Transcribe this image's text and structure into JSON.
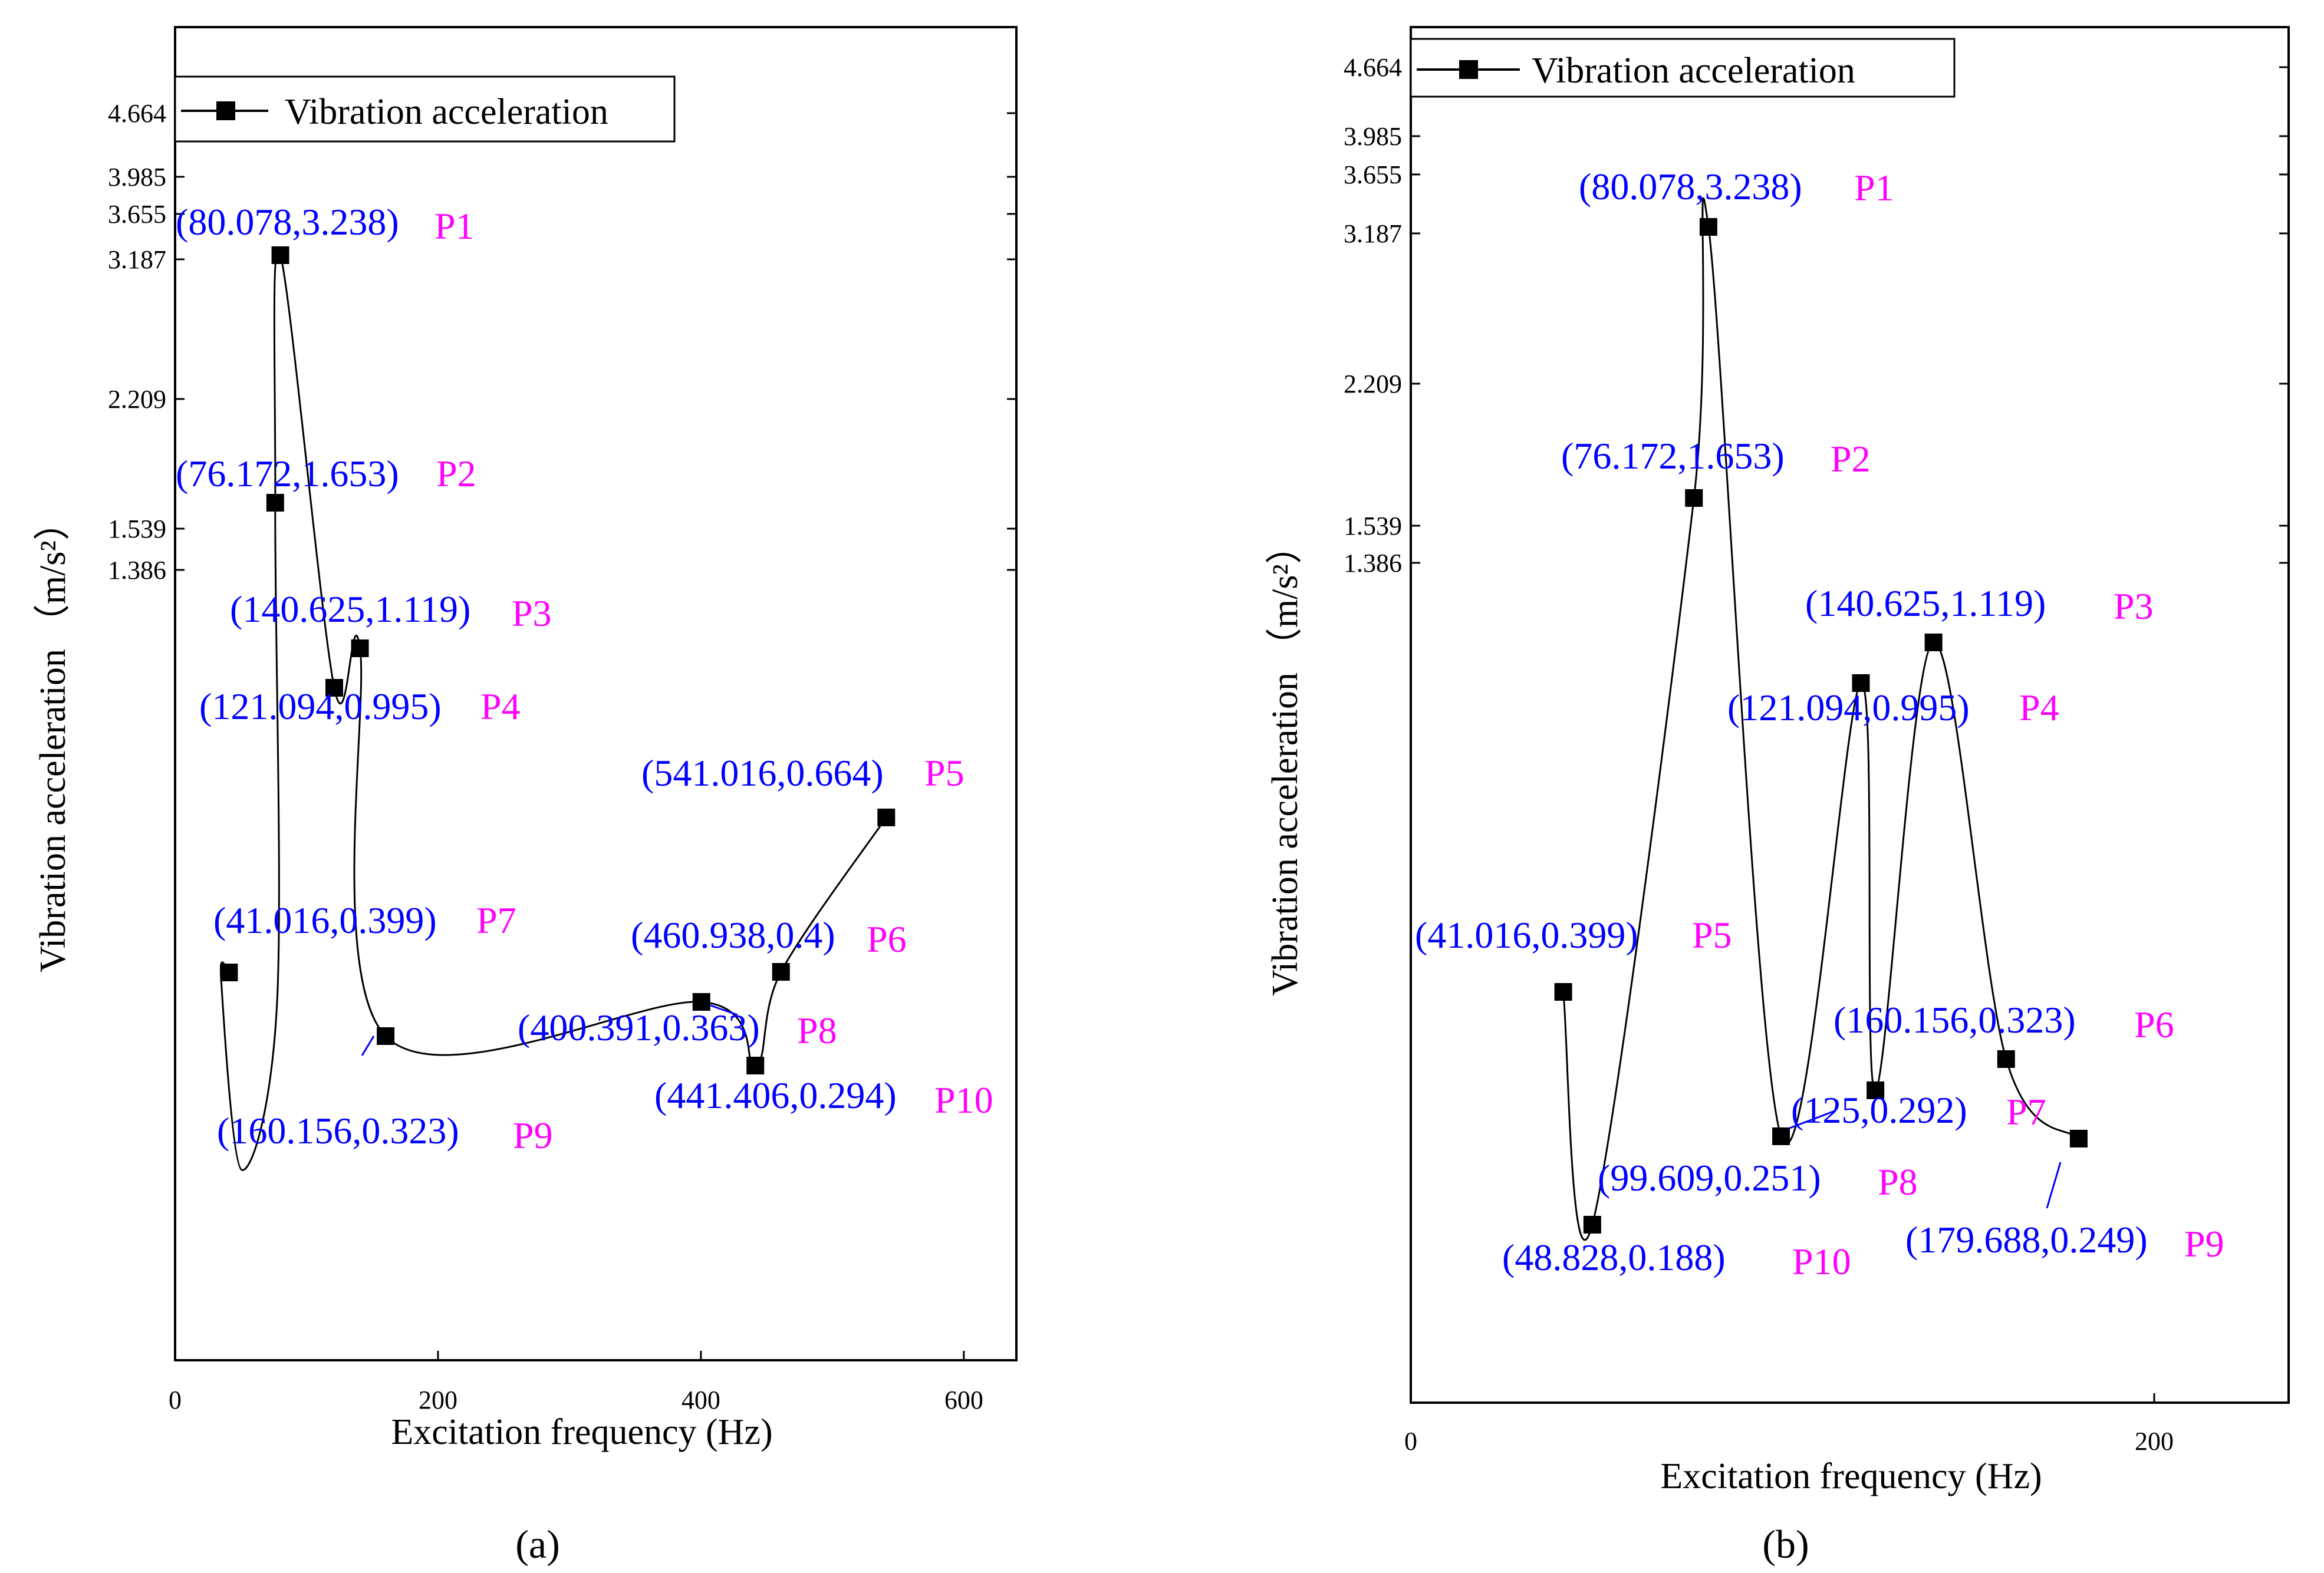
{
  "chart_data": [
    {
      "type": "line",
      "panel_label": "(a)",
      "xlabel": "Excitation frequency (Hz)",
      "ylabel": "Vibration acceleration",
      "ylabel_unit": "（m/s²）",
      "xlim": [
        0,
        640
      ],
      "x_ticks": [
        0,
        200,
        400,
        600
      ],
      "x_tick_labels": [
        "0",
        "200",
        "400",
        "600"
      ],
      "y_ticks": [
        1.386,
        1.539,
        2.209,
        3.187,
        3.655,
        3.985,
        4.664
      ],
      "y_tick_labels": [
        "1.386",
        "1.539",
        "2.209",
        "3.187",
        "3.655",
        "3.985",
        "4.664"
      ],
      "legend": "Vibration acceleration",
      "series": [
        {
          "name": "Vibration acceleration",
          "points": [
            {
              "x": 41.016,
              "y": 0.399,
              "label": "(41.016,0.399)",
              "id": "P7"
            },
            {
              "x": 76.172,
              "y": 1.653,
              "label": "(76.172,1.653)",
              "id": "P2"
            },
            {
              "x": 80.078,
              "y": 3.238,
              "label": "(80.078,3.238)",
              "id": "P1"
            },
            {
              "x": 121.094,
              "y": 0.995,
              "label": "(121.094,0.995)",
              "id": "P4"
            },
            {
              "x": 140.625,
              "y": 1.119,
              "label": "(140.625,1.119)",
              "id": "P3"
            },
            {
              "x": 160.156,
              "y": 0.323,
              "label": "(160.156,0.323)",
              "id": "P9"
            },
            {
              "x": 400.391,
              "y": 0.363,
              "label": "(400.391,0.363)",
              "id": "P8"
            },
            {
              "x": 441.406,
              "y": 0.294,
              "label": "(441.406,0.294)",
              "id": "P10"
            },
            {
              "x": 460.938,
              "y": 0.4,
              "label": "(460.938,0.4)",
              "id": "P6"
            },
            {
              "x": 541.016,
              "y": 0.664,
              "label": "(541.016,0.664)",
              "id": "P5"
            }
          ]
        }
      ]
    },
    {
      "type": "line",
      "panel_label": "(b)",
      "xlabel": "Excitation frequency (Hz)",
      "ylabel": "Vibration acceleration",
      "ylabel_unit": "（m/s²）",
      "xlim": [
        0,
        236
      ],
      "x_ticks": [
        0,
        200
      ],
      "x_tick_labels": [
        "0",
        "200"
      ],
      "y_ticks": [
        1.386,
        1.539,
        2.209,
        3.187,
        3.655,
        3.985,
        4.664
      ],
      "y_tick_labels": [
        "1.386",
        "1.539",
        "2.209",
        "3.187",
        "3.655",
        "3.985",
        "4.664"
      ],
      "legend": "Vibration acceleration",
      "series": [
        {
          "name": "Vibration acceleration",
          "points": [
            {
              "x": 41.016,
              "y": 0.399,
              "label": "(41.016,0.399)",
              "id": "P5"
            },
            {
              "x": 48.828,
              "y": 0.188,
              "label": "(48.828,0.188)",
              "id": "P10"
            },
            {
              "x": 76.172,
              "y": 1.653,
              "label": "(76.172,1.653)",
              "id": "P2"
            },
            {
              "x": 80.078,
              "y": 3.238,
              "label": "(80.078,3.238)",
              "id": "P1"
            },
            {
              "x": 99.609,
              "y": 0.251,
              "label": "(99.609,0.251)",
              "id": "P8"
            },
            {
              "x": 121.094,
              "y": 0.995,
              "label": "(121.094,0.995)",
              "id": "P4"
            },
            {
              "x": 125,
              "y": 0.292,
              "label": "(125,0.292)",
              "id": "P7"
            },
            {
              "x": 140.625,
              "y": 1.119,
              "label": "(140.625,1.119)",
              "id": "P3"
            },
            {
              "x": 160.156,
              "y": 0.323,
              "label": "(160.156,0.323)",
              "id": "P6"
            },
            {
              "x": 179.688,
              "y": 0.249,
              "label": "(179.688,0.249)",
              "id": "P9"
            }
          ]
        }
      ]
    }
  ]
}
